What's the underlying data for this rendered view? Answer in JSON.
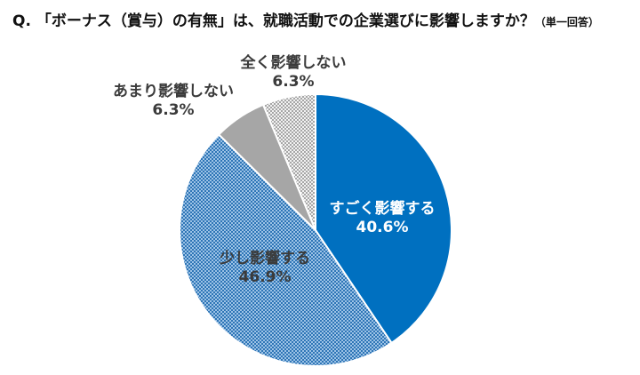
{
  "title": {
    "main": "Q. 「ボーナス（賞与）の有無」は、就職活動での企業選びに影響しますか？",
    "note": "（単一回答）"
  },
  "chart_data": {
    "type": "pie",
    "title": "Q. 「ボーナス（賞与）の有無」は、就職活動での企業選びに影響しますか？（単一回答）",
    "unit": "%",
    "start": "12 o'clock",
    "direction": "clockwise",
    "slices": [
      {
        "label": "すごく影響する",
        "value": 40.6,
        "value_label": "40.6%",
        "color": "#0070c0",
        "fill": "solid"
      },
      {
        "label": "少し影響する",
        "value": 46.9,
        "value_label": "46.9%",
        "color": "#5b9bd5",
        "fill": "pattern-blue"
      },
      {
        "label": "あまり影響しない",
        "value": 6.3,
        "value_label": "6.3%",
        "color": "#a6a6a6",
        "fill": "solid"
      },
      {
        "label": "全く影響しない",
        "value": 6.3,
        "value_label": "6.3%",
        "color": "#bfbfbf",
        "fill": "pattern-gray"
      }
    ]
  }
}
